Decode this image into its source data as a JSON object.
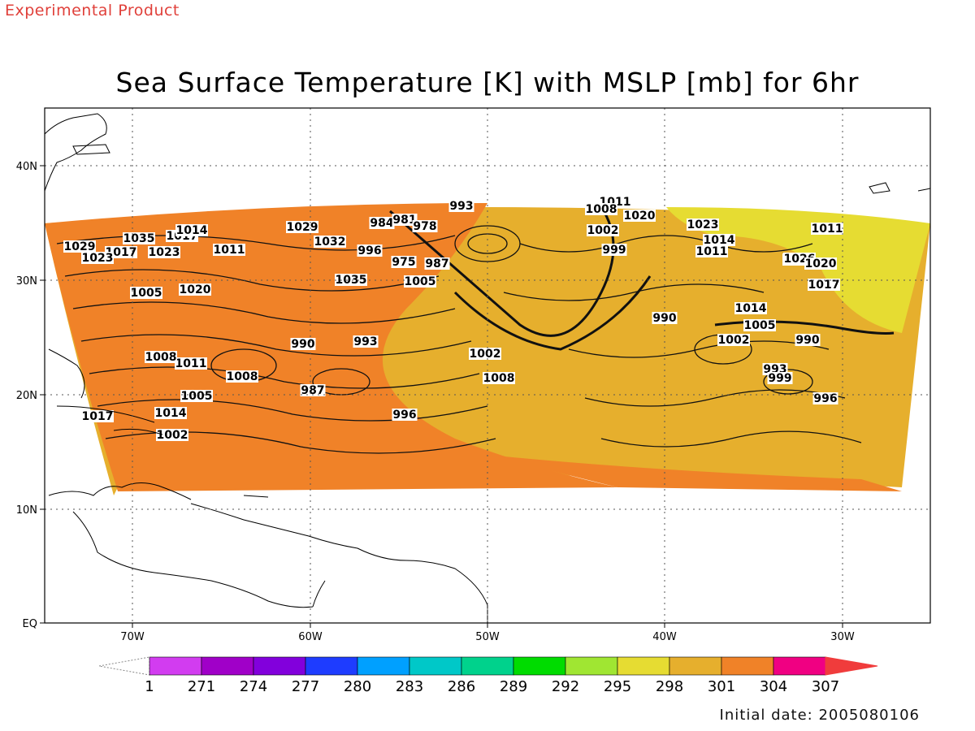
{
  "header": {
    "tag": "Experimental Product",
    "title": "Sea Surface Temperature [K] with MSLP [mb] for 6hr"
  },
  "axes": {
    "lon_labels": [
      "70W",
      "60W",
      "50W",
      "40W",
      "30W"
    ],
    "lat_labels": [
      "40N",
      "30N",
      "20N",
      "10N",
      "EQ"
    ]
  },
  "colorbar": {
    "labels": [
      "1",
      "271",
      "274",
      "277",
      "280",
      "283",
      "286",
      "289",
      "292",
      "295",
      "298",
      "301",
      "304",
      "307"
    ],
    "colors": [
      "#d23cf0",
      "#a000c8",
      "#8200dc",
      "#1e3cff",
      "#00a0ff",
      "#00c8c8",
      "#00d28c",
      "#00dc00",
      "#a0e632",
      "#e6dc32",
      "#e6af2d",
      "#f08228",
      "#f00082",
      "#f03c3c"
    ]
  },
  "isobar_labels": [
    "1011",
    "1008",
    "1020",
    "1002",
    "1023",
    "1029",
    "1017",
    "1014",
    "1011",
    "1026",
    "993",
    "984",
    "981",
    "978",
    "987",
    "996",
    "975",
    "1032",
    "1035",
    "1005",
    "999",
    "990",
    "1026",
    "1020",
    "1017",
    "1014",
    "1011",
    "1002",
    "990",
    "993",
    "999",
    "996",
    "1005",
    "1008",
    "1002",
    "1011",
    "1014",
    "1017",
    "1020",
    "1023",
    "1005",
    "1008",
    "990",
    "987",
    "993",
    "996",
    "1002",
    "1005",
    "1008",
    "1011",
    "1014",
    "1017",
    "1023",
    "1029",
    "1035"
  ],
  "footer": {
    "init_label": "Initial date:",
    "init_date": "2005080106"
  }
}
